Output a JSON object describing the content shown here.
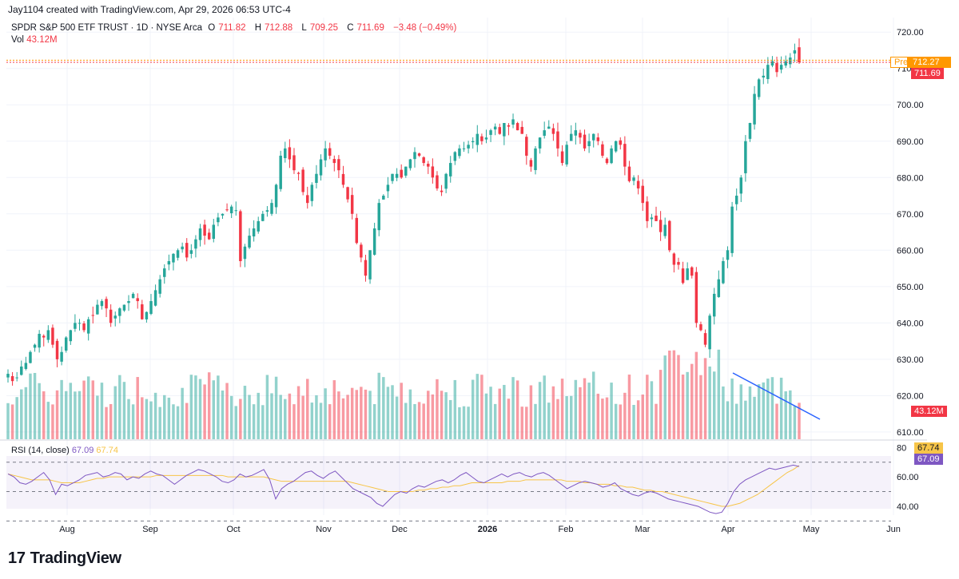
{
  "header": {
    "credit": "Jay1104 created with TradingView.com, Apr 29, 2026 06:53 UTC-4",
    "symbol": "SPDR S&P 500 ETF TRUST · 1D · NYSE Arca",
    "o_label": "O",
    "o_value": "711.82",
    "h_label": "H",
    "h_value": "712.88",
    "l_label": "L",
    "l_value": "709.25",
    "c_label": "C",
    "c_value": "711.69",
    "change": "−3.48 (−0.49%)",
    "vol_label": "Vol",
    "vol_value": "43.12M"
  },
  "rsi": {
    "label": "RSI (14, close)",
    "value": "67.09",
    "ma_value": "67.74"
  },
  "badges": {
    "pre_label": "Pre",
    "pre_price": "712.27",
    "last_price": "711.69",
    "volume": "43.12M",
    "rsi_ma": "67.74",
    "rsi_value": "67.09"
  },
  "brand": {
    "logo_mark": "17",
    "logo_text": "TradingView"
  },
  "colors": {
    "up": "#26a69a",
    "down": "#f23645",
    "rsi": "#7e57c2",
    "rsi_ma": "#f7c548",
    "trendline": "#2962ff"
  },
  "chart_data": {
    "type": "candlestick",
    "price_axis": {
      "ticks": [
        "720.00",
        "710.00",
        "700.00",
        "690.00",
        "680.00",
        "670.00",
        "660.00",
        "650.00",
        "640.00",
        "630.00",
        "620.00",
        "610.00"
      ],
      "range": [
        608,
        724
      ]
    },
    "rsi_axis": {
      "ticks": [
        "80",
        "60.00",
        "40.00"
      ],
      "range": [
        34,
        84
      ],
      "bands": [
        30,
        50,
        70
      ]
    },
    "time_axis": [
      "Aug",
      "Sep",
      "Oct",
      "Nov",
      "Dec",
      "2026",
      "Feb",
      "Mar",
      "Apr",
      "May",
      "Jun"
    ],
    "last_close": 711.69,
    "pre_market": 712.27,
    "closes": [
      626,
      624,
      625,
      628,
      629,
      632,
      634,
      637,
      636,
      638,
      634,
      630,
      632,
      636,
      638,
      640,
      640,
      638,
      641,
      642,
      645,
      646,
      644,
      640,
      642,
      644,
      645,
      646,
      648,
      646,
      641,
      643,
      646,
      649,
      652,
      655,
      657,
      659,
      660,
      661,
      658,
      660,
      663,
      666,
      664,
      663,
      667,
      669,
      670,
      671,
      672,
      671,
      657,
      661,
      664,
      666,
      668,
      670,
      671,
      673,
      678,
      686,
      688,
      685,
      682,
      681,
      676,
      673,
      678,
      681,
      685,
      688,
      686,
      684,
      682,
      678,
      674,
      670,
      662,
      658,
      653,
      660,
      666,
      673,
      675,
      678,
      681,
      681,
      680,
      683,
      685,
      687,
      686,
      684,
      683,
      680,
      677,
      676,
      681,
      684,
      687,
      688,
      688,
      689,
      690,
      692,
      690,
      691,
      693,
      694,
      692,
      695,
      694,
      696,
      693,
      692,
      686,
      683,
      688,
      691,
      693,
      694,
      692,
      688,
      684,
      689,
      692,
      693,
      691,
      688,
      690,
      692,
      690,
      686,
      684,
      688,
      690,
      689,
      683,
      679,
      680,
      677,
      673,
      668,
      669,
      668,
      665,
      667,
      660,
      656,
      656,
      651,
      655,
      653,
      640,
      638,
      634,
      642,
      648,
      652,
      657,
      660,
      672,
      675,
      680,
      690,
      695,
      703,
      707,
      708,
      711,
      712,
      709,
      711,
      712,
      713,
      715,
      711.69
    ],
    "rsi_values": [
      62,
      60,
      56,
      55,
      57,
      60,
      63,
      58,
      48,
      55,
      54,
      56,
      58,
      61,
      62,
      63,
      60,
      61,
      63,
      62,
      58,
      60,
      59,
      62,
      64,
      62,
      61,
      58,
      55,
      58,
      61,
      63,
      65,
      64,
      62,
      60,
      57,
      56,
      58,
      62,
      60,
      61,
      63,
      65,
      58,
      45,
      52,
      55,
      57,
      60,
      63,
      64,
      61,
      59,
      62,
      64,
      60,
      56,
      52,
      50,
      48,
      46,
      42,
      40,
      44,
      48,
      50,
      49,
      52,
      54,
      53,
      55,
      57,
      58,
      56,
      58,
      61,
      63,
      60,
      57,
      56,
      58,
      60,
      62,
      60,
      62,
      63,
      61,
      60,
      62,
      63,
      61,
      58,
      55,
      52,
      54,
      56,
      57,
      56,
      55,
      53,
      54,
      56,
      52,
      50,
      48,
      47,
      49,
      50,
      49,
      47,
      45,
      44,
      43,
      42,
      41,
      40,
      38,
      36,
      35,
      36,
      42,
      50,
      55,
      58,
      60,
      62,
      64,
      66,
      65,
      66,
      67,
      68,
      67.09
    ],
    "rsi_ma_values": [
      62,
      61,
      60,
      59,
      58,
      58,
      58,
      58,
      57,
      56,
      56,
      56,
      56,
      57,
      58,
      59,
      59,
      60,
      60,
      60,
      60,
      60,
      60,
      60,
      60,
      61,
      61,
      61,
      61,
      61,
      61,
      61,
      61,
      61,
      61,
      61,
      61,
      60,
      60,
      60,
      60,
      60,
      60,
      60,
      59,
      58,
      57,
      57,
      57,
      57,
      57,
      57,
      57,
      57,
      57,
      57,
      57,
      57,
      56,
      55,
      54,
      53,
      52,
      51,
      50,
      50,
      50,
      50,
      50,
      51,
      51,
      52,
      52,
      53,
      53,
      54,
      54,
      55,
      56,
      56,
      56,
      56,
      56,
      56,
      57,
      57,
      57,
      58,
      58,
      58,
      58,
      58,
      58,
      58,
      57,
      57,
      57,
      56,
      56,
      55,
      55,
      55,
      54,
      54,
      53,
      53,
      52,
      51,
      51,
      50,
      50,
      49,
      48,
      47,
      46,
      45,
      44,
      43,
      42,
      41,
      40,
      40,
      41,
      42,
      44,
      46,
      48,
      51,
      54,
      57,
      60,
      63,
      65,
      67.74
    ],
    "trendline": {
      "label": "",
      "from": {
        "index": 152,
        "value": 627
      },
      "to": {
        "index": 177,
        "value": 614
      }
    }
  }
}
